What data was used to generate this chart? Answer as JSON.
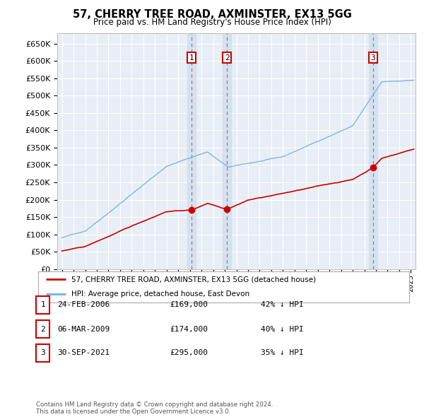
{
  "title": "57, CHERRY TREE ROAD, AXMINSTER, EX13 5GG",
  "subtitle": "Price paid vs. HM Land Registry's House Price Index (HPI)",
  "xlim_start": 1994.6,
  "xlim_end": 2025.4,
  "ylim_min": 0,
  "ylim_max": 680000,
  "yticks": [
    0,
    50000,
    100000,
    150000,
    200000,
    250000,
    300000,
    350000,
    400000,
    450000,
    500000,
    550000,
    600000,
    650000
  ],
  "ytick_labels": [
    "£0",
    "£50K",
    "£100K",
    "£150K",
    "£200K",
    "£250K",
    "£300K",
    "£350K",
    "£400K",
    "£450K",
    "£500K",
    "£550K",
    "£600K",
    "£650K"
  ],
  "background_color": "#ffffff",
  "plot_bg_color": "#e8eef5",
  "grid_color": "#ffffff",
  "red_color": "#cc0000",
  "blue_color": "#7aaddb",
  "vline_color": "#cc6666",
  "vspan_color": "#d0e0f0",
  "transactions": [
    {
      "num": 1,
      "date_label": "24-FEB-2006",
      "date_x": 2006.15,
      "price": 169000,
      "price_label": "£169,000",
      "pct_label": "42% ↓ HPI"
    },
    {
      "num": 2,
      "date_label": "06-MAR-2009",
      "date_x": 2009.19,
      "price": 174000,
      "price_label": "£174,000",
      "pct_label": "40% ↓ HPI"
    },
    {
      "num": 3,
      "date_label": "30-SEP-2021",
      "date_x": 2021.75,
      "price": 295000,
      "price_label": "£295,000",
      "pct_label": "35% ↓ HPI"
    }
  ],
  "legend_red_label": "57, CHERRY TREE ROAD, AXMINSTER, EX13 5GG (detached house)",
  "legend_blue_label": "HPI: Average price, detached house, East Devon",
  "footer": "Contains HM Land Registry data © Crown copyright and database right 2024.\nThis data is licensed under the Open Government Licence v3.0."
}
